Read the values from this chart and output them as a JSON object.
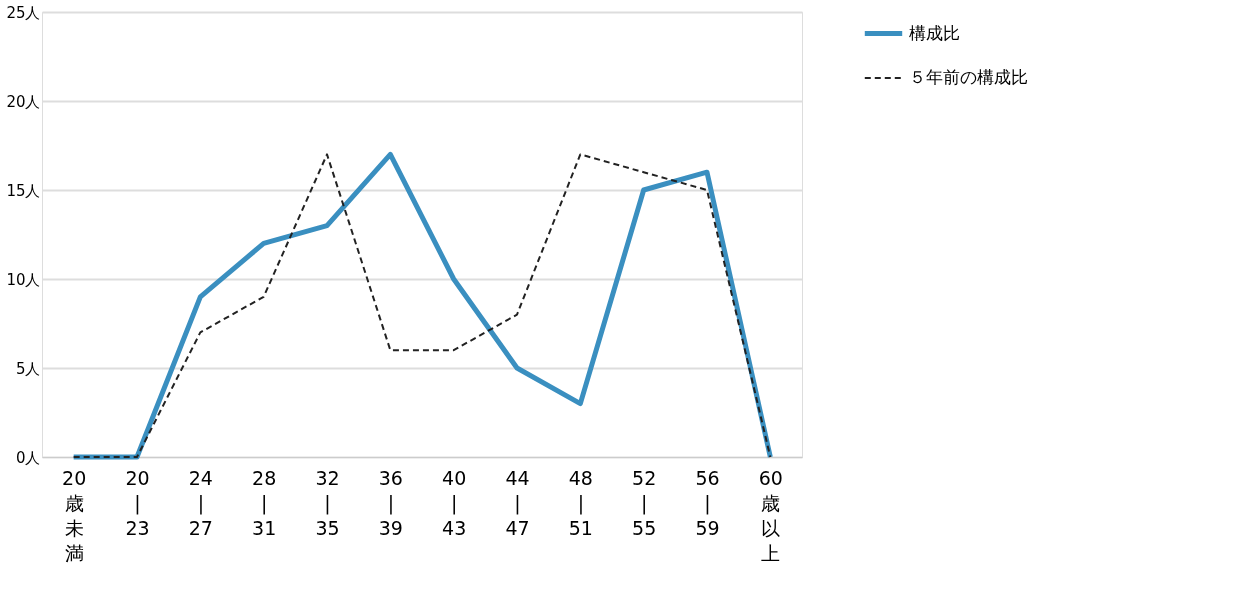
{
  "chart_data": {
    "type": "line",
    "categories": [
      "20歳未満",
      "20\n|\n23",
      "24\n|\n27",
      "28\n|\n31",
      "32\n|\n35",
      "36\n|\n39",
      "40\n|\n43",
      "44\n|\n47",
      "48\n|\n51",
      "52\n|\n55",
      "56\n|\n59",
      "60歳以上"
    ],
    "series": [
      {
        "name": "構成比",
        "color": "#3a8fc0",
        "line_style": "solid",
        "values": [
          0,
          0,
          9,
          12,
          13,
          17,
          10,
          5,
          3,
          15,
          16,
          0
        ]
      },
      {
        "name": "５年前の構成比",
        "color": "#222222",
        "line_style": "dashed",
        "values": [
          0,
          0,
          7,
          9,
          17,
          6,
          6,
          8,
          17,
          16,
          15,
          0
        ]
      }
    ],
    "ylim": [
      0,
      25
    ],
    "yticks": [
      {
        "value": 0,
        "label": "0人"
      },
      {
        "value": 5,
        "label": "5人"
      },
      {
        "value": 10,
        "label": "10人"
      },
      {
        "value": 15,
        "label": "15人"
      },
      {
        "value": 20,
        "label": "20人"
      },
      {
        "value": 25,
        "label": "25人"
      }
    ],
    "grid": "y",
    "legend": "top right",
    "marker": "none"
  }
}
